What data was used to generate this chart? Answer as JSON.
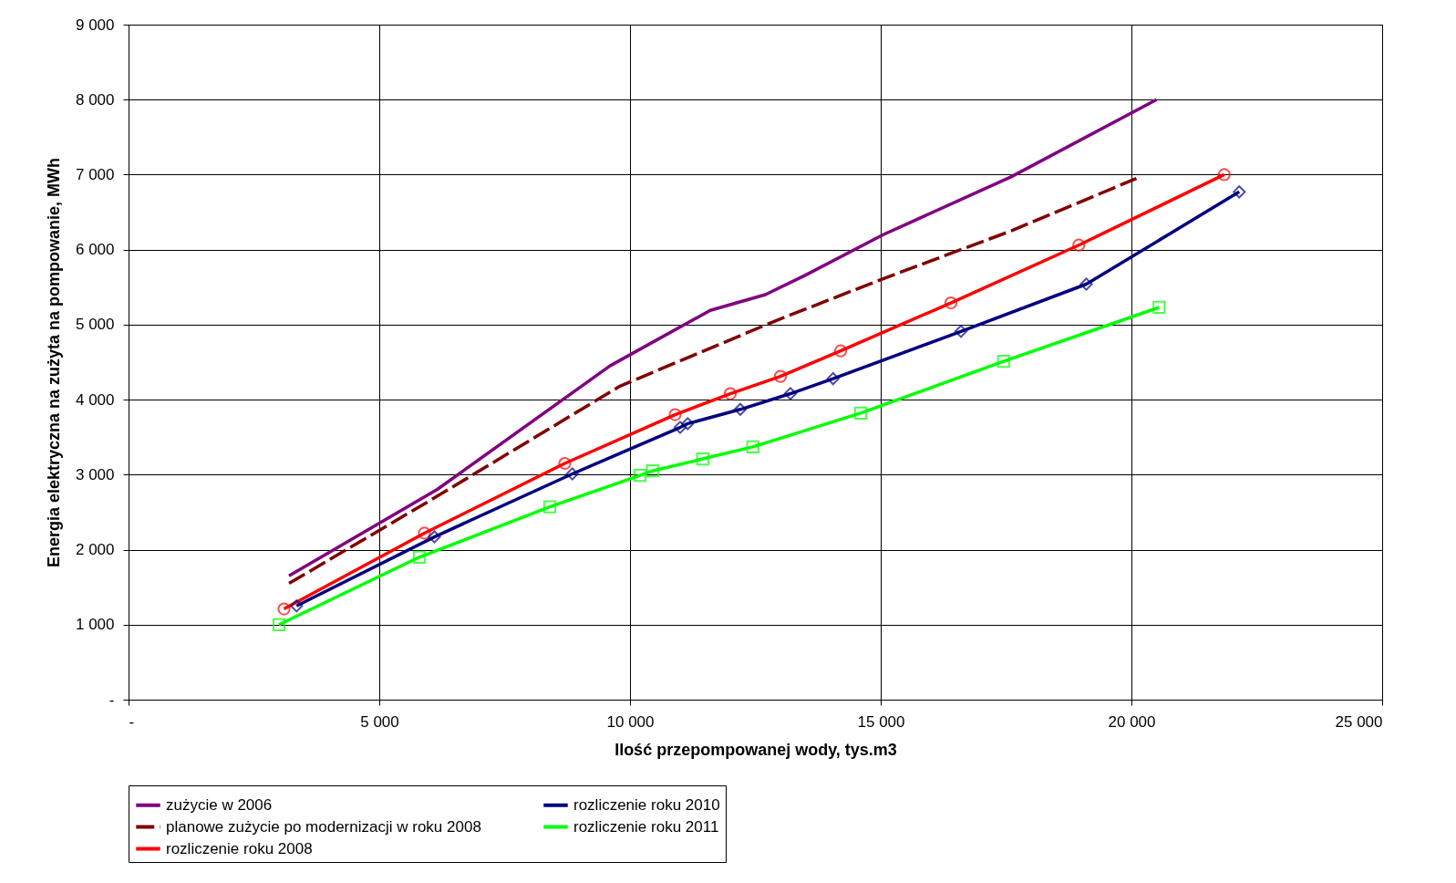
{
  "chart_data": {
    "type": "line",
    "xlabel": "Ilość przepompowanej wody, tys.m3",
    "ylabel": "Energia elektryczna na zużyta na pompowanie, MWh",
    "xlim": [
      0,
      25000
    ],
    "ylim": [
      0,
      9000
    ],
    "xticks": [
      {
        "value": 0,
        "label": "-"
      },
      {
        "value": 5000,
        "label": "5 000"
      },
      {
        "value": 10000,
        "label": "10 000"
      },
      {
        "value": 15000,
        "label": "15 000"
      },
      {
        "value": 20000,
        "label": "20 000"
      },
      {
        "value": 25000,
        "label": "25 000"
      }
    ],
    "yticks": [
      {
        "value": 0,
        "label": "-"
      },
      {
        "value": 1000,
        "label": "1 000"
      },
      {
        "value": 2000,
        "label": "2 000"
      },
      {
        "value": 3000,
        "label": "3 000"
      },
      {
        "value": 4000,
        "label": "4 000"
      },
      {
        "value": 5000,
        "label": "5 000"
      },
      {
        "value": 6000,
        "label": "6 000"
      },
      {
        "value": 7000,
        "label": "7 000"
      },
      {
        "value": 8000,
        "label": "8 000"
      },
      {
        "value": 9000,
        "label": "9 000"
      }
    ],
    "grid": true,
    "legend": "bottom",
    "series": [
      {
        "name": "zużycie w 2006",
        "color": "#800080",
        "marker": "none",
        "line_style": "solid",
        "x": [
          3200,
          6150,
          9600,
          11600,
          12700,
          13500,
          15050,
          17600,
          20500
        ],
        "values": [
          1650,
          2800,
          4450,
          5190,
          5400,
          5660,
          6200,
          6970,
          8000
        ]
      },
      {
        "name": "planowe zużycie po modernizacji w roku 2008",
        "color": "#800000",
        "marker": "none",
        "line_style": "dashed",
        "x": [
          3200,
          6000,
          9800,
          12900,
          15000,
          17600,
          20100
        ],
        "values": [
          1550,
          2650,
          4180,
          5050,
          5600,
          6250,
          6950
        ]
      },
      {
        "name": "rozliczenie roku 2008",
        "color": "#ff0000",
        "marker": "circle",
        "line_style": "solid",
        "x": [
          3100,
          5900,
          8700,
          10900,
          12000,
          13000,
          14200,
          16400,
          18950,
          21850
        ],
        "values": [
          1210,
          2220,
          3150,
          3800,
          4080,
          4310,
          4650,
          5290,
          6060,
          7000
        ]
      },
      {
        "name": "rozliczenie roku 2010",
        "color": "#000080",
        "marker": "diamond",
        "line_style": "solid",
        "x": [
          3350,
          6100,
          8850,
          11000,
          11150,
          12200,
          13200,
          14050,
          16600,
          19100,
          22150
        ],
        "values": [
          1250,
          2170,
          3010,
          3630,
          3680,
          3870,
          4080,
          4280,
          4910,
          5540,
          6770
        ]
      },
      {
        "name": "rozliczenie roku 2011",
        "color": "#00ff00",
        "marker": "square",
        "line_style": "solid",
        "x": [
          3000,
          5800,
          8400,
          10200,
          10450,
          11450,
          12450,
          14600,
          17450,
          20550
        ],
        "values": [
          1000,
          1900,
          2570,
          2990,
          3050,
          3210,
          3370,
          3820,
          4510,
          5230
        ]
      }
    ]
  }
}
